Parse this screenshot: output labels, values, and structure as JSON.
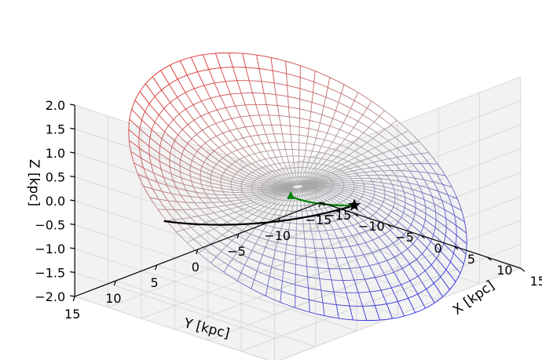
{
  "chart_data": {
    "type": "surface3d",
    "title": "",
    "axes": {
      "x": {
        "label": "X [kpc]",
        "range": [
          -15,
          15
        ],
        "ticks": [
          -15,
          -10,
          -5,
          0,
          5,
          10,
          15
        ],
        "tick_labels": [
          "−15",
          "−10",
          "−5",
          "0",
          "5",
          "10",
          "15"
        ]
      },
      "y": {
        "label": "Y [kpc]",
        "range": [
          -15,
          15
        ],
        "ticks": [
          15,
          10,
          5,
          0,
          -5,
          -10,
          -15
        ],
        "tick_labels": [
          "15",
          "10",
          "5",
          "0",
          "−5",
          "−10",
          "−15"
        ]
      },
      "z": {
        "label": "Z [kpc]",
        "range": [
          -2.0,
          2.0
        ],
        "ticks": [
          2.0,
          1.5,
          1.0,
          0.5,
          0.0,
          -0.5,
          -1.0,
          -1.5,
          -2.0
        ],
        "tick_labels": [
          "2.0",
          "1.5",
          "1.0",
          "0.5",
          "0.0",
          "−0.5",
          "−1.0",
          "−1.5",
          "−2.0"
        ]
      }
    },
    "grid": true,
    "surface": {
      "description": "warped galactic disk mesh",
      "r_range": [
        0.5,
        16
      ],
      "warp_amplitude_at_edge": 2.0,
      "colors": {
        "up": "#e02020",
        "flat": "#a8a8a8",
        "down": "#2020e0"
      }
    },
    "series": [
      {
        "color": "#000000",
        "points": [
          [
            8.5,
            0.0,
            0.0
          ],
          [
            7.0,
            6.5,
            -0.05
          ],
          [
            3.5,
            12.5,
            0.1
          ],
          [
            -1.0,
            15.5,
            0.25
          ]
        ]
      },
      {
        "color": "#008000",
        "points": [
          [
            8.5,
            0.0,
            0.0
          ],
          [
            7.5,
            2.5,
            0.1
          ],
          [
            6.8,
            4.5,
            0.28
          ],
          [
            6.6,
            6.2,
            0.5
          ]
        ]
      }
    ],
    "markers": [
      {
        "symbol": "star",
        "color": "#000000",
        "point": [
          8.5,
          0.0,
          0.0
        ]
      }
    ]
  }
}
